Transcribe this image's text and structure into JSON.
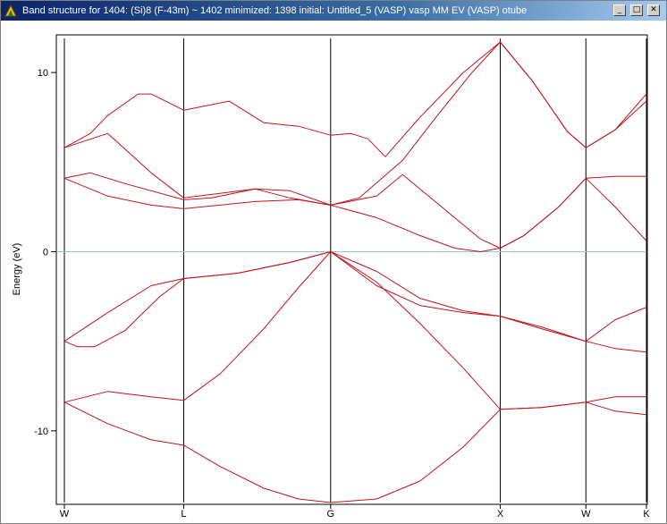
{
  "window": {
    "title": "Band structure for 1404: (Si)8  (F-43m) ~ 1402 minimized: 1398 initial: Untitled_5 (VASP) vasp MM EV (VASP) otube",
    "icon": "app-icon",
    "buttons": [
      {
        "name": "minimize-button",
        "icon": "minimize-icon",
        "glyph": "_"
      },
      {
        "name": "maximize-button",
        "icon": "maximize-icon",
        "glyph": "□"
      },
      {
        "name": "close-button",
        "icon": "close-icon",
        "glyph": "✕"
      }
    ]
  },
  "chart_data": {
    "type": "line",
    "title": "",
    "xlabel": "",
    "ylabel": "Energy (eV)",
    "ylim": [
      -14,
      12
    ],
    "yticks": [
      {
        "value": -10,
        "label": "-10"
      },
      {
        "value": 0,
        "label": "0"
      },
      {
        "value": 10,
        "label": "10"
      }
    ],
    "kpoints": [
      {
        "label": "W",
        "x": 0
      },
      {
        "label": "L",
        "x": 1.376
      },
      {
        "label": "G",
        "x": 3.07
      },
      {
        "label": "X",
        "x": 5.026
      },
      {
        "label": "W",
        "x": 6.013
      },
      {
        "label": "K",
        "x": 6.711
      }
    ],
    "xlim": [
      0,
      6.711
    ],
    "fermi_level": 0,
    "colors": {
      "bands": "#c0141a",
      "fermi": "#8ec8d0",
      "kline": "#000000"
    },
    "series": [
      {
        "values": [
          [
            0,
            -8.4
          ],
          [
            0.5,
            -9.6
          ],
          [
            1.0,
            -10.5
          ],
          [
            1.376,
            -10.8
          ],
          [
            1.8,
            -12.0
          ],
          [
            2.3,
            -13.2
          ],
          [
            2.7,
            -13.8
          ],
          [
            3.07,
            -14.0
          ],
          [
            3.6,
            -13.8
          ],
          [
            4.1,
            -12.8
          ],
          [
            4.6,
            -10.9
          ],
          [
            5.026,
            -8.8
          ],
          [
            5.5,
            -8.7
          ],
          [
            6.013,
            -8.4
          ],
          [
            6.35,
            -8.9
          ],
          [
            6.711,
            -9.1
          ]
        ]
      },
      {
        "values": [
          [
            0,
            -8.4
          ],
          [
            0.5,
            -7.8
          ],
          [
            1.0,
            -8.1
          ],
          [
            1.376,
            -8.3
          ],
          [
            1.8,
            -6.8
          ],
          [
            2.3,
            -4.3
          ],
          [
            2.7,
            -2.0
          ],
          [
            3.07,
            0.0
          ],
          [
            3.6,
            -1.7
          ],
          [
            4.1,
            -4.0
          ],
          [
            4.6,
            -6.5
          ],
          [
            5.026,
            -8.8
          ],
          [
            5.5,
            -8.7
          ],
          [
            6.013,
            -8.4
          ],
          [
            6.35,
            -8.1
          ],
          [
            6.711,
            -8.1
          ]
        ]
      },
      {
        "values": [
          [
            0,
            -5.0
          ],
          [
            0.15,
            -5.3
          ],
          [
            0.35,
            -5.3
          ],
          [
            0.7,
            -4.4
          ],
          [
            1.1,
            -2.5
          ],
          [
            1.376,
            -1.5
          ],
          [
            2.0,
            -1.2
          ],
          [
            2.6,
            -0.6
          ],
          [
            3.07,
            0.0
          ],
          [
            3.6,
            -1.9
          ],
          [
            4.1,
            -3.0
          ],
          [
            4.6,
            -3.4
          ],
          [
            5.026,
            -3.6
          ],
          [
            5.5,
            -4.2
          ],
          [
            6.013,
            -5.0
          ],
          [
            6.35,
            -5.4
          ],
          [
            6.711,
            -5.6
          ]
        ]
      },
      {
        "values": [
          [
            0,
            -5.0
          ],
          [
            0.5,
            -3.4
          ],
          [
            1.0,
            -1.9
          ],
          [
            1.376,
            -1.5
          ],
          [
            2.0,
            -1.2
          ],
          [
            2.6,
            -0.6
          ],
          [
            3.07,
            0.0
          ],
          [
            3.6,
            -1.1
          ],
          [
            4.1,
            -2.6
          ],
          [
            4.6,
            -3.3
          ],
          [
            5.026,
            -3.6
          ],
          [
            5.5,
            -4.3
          ],
          [
            6.013,
            -5.0
          ],
          [
            6.35,
            -3.8
          ],
          [
            6.711,
            -3.1
          ]
        ]
      },
      {
        "values": [
          [
            0,
            4.1
          ],
          [
            0.5,
            3.1
          ],
          [
            1.0,
            2.6
          ],
          [
            1.376,
            2.4
          ],
          [
            2.2,
            2.8
          ],
          [
            2.7,
            2.9
          ],
          [
            3.07,
            2.6
          ],
          [
            3.6,
            1.9
          ],
          [
            4.1,
            0.9
          ],
          [
            4.5,
            0.2
          ],
          [
            4.8,
            0.0
          ],
          [
            5.026,
            0.2
          ],
          [
            5.3,
            0.9
          ],
          [
            5.7,
            2.5
          ],
          [
            6.013,
            4.1
          ],
          [
            6.35,
            2.5
          ],
          [
            6.711,
            0.6
          ]
        ]
      },
      {
        "values": [
          [
            0,
            4.1
          ],
          [
            0.3,
            4.4
          ],
          [
            0.7,
            3.8
          ],
          [
            1.376,
            2.9
          ],
          [
            1.7,
            3.0
          ],
          [
            2.2,
            3.5
          ],
          [
            2.6,
            3.4
          ],
          [
            3.07,
            2.6
          ],
          [
            3.6,
            3.1
          ],
          [
            3.9,
            4.3
          ],
          [
            4.4,
            2.3
          ],
          [
            4.8,
            0.7
          ],
          [
            5.026,
            0.2
          ],
          [
            5.3,
            0.9
          ],
          [
            5.7,
            2.5
          ],
          [
            6.013,
            4.1
          ],
          [
            6.35,
            4.2
          ],
          [
            6.711,
            4.2
          ]
        ]
      },
      {
        "values": [
          [
            0,
            5.8
          ],
          [
            0.5,
            6.6
          ],
          [
            1.0,
            4.4
          ],
          [
            1.376,
            3.0
          ],
          [
            2.2,
            3.5
          ],
          [
            2.6,
            3.0
          ],
          [
            3.07,
            2.6
          ],
          [
            3.4,
            3.0
          ],
          [
            3.9,
            5.1
          ],
          [
            4.3,
            7.6
          ],
          [
            4.7,
            10.0
          ],
          [
            5.026,
            11.7
          ],
          [
            5.4,
            9.5
          ],
          [
            5.8,
            6.7
          ],
          [
            6.013,
            5.8
          ],
          [
            6.35,
            6.8
          ],
          [
            6.711,
            8.8
          ]
        ]
      },
      {
        "values": [
          [
            0,
            5.8
          ],
          [
            0.3,
            6.6
          ],
          [
            0.5,
            7.6
          ],
          [
            0.85,
            8.8
          ],
          [
            1.0,
            8.8
          ],
          [
            1.376,
            7.9
          ],
          [
            1.9,
            8.4
          ],
          [
            2.3,
            7.2
          ],
          [
            2.7,
            7.0
          ],
          [
            3.07,
            6.5
          ],
          [
            3.3,
            6.6
          ],
          [
            3.5,
            6.3
          ],
          [
            3.7,
            5.3
          ],
          [
            4.1,
            7.5
          ],
          [
            4.6,
            10.0
          ],
          [
            5.026,
            11.7
          ],
          [
            5.4,
            9.5
          ],
          [
            5.8,
            6.7
          ],
          [
            6.013,
            5.8
          ],
          [
            6.35,
            6.8
          ],
          [
            6.711,
            8.4
          ]
        ]
      }
    ]
  }
}
